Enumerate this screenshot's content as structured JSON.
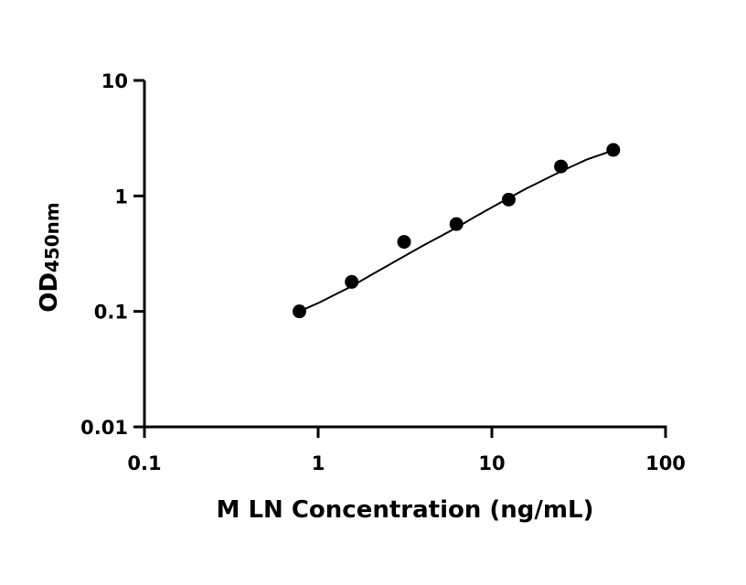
{
  "chart_data": {
    "type": "scatter",
    "xlabel": "M LN Concentration (ng/mL)",
    "ylabel": {
      "main": "OD",
      "sub": "450nm"
    },
    "x_scale": "log",
    "y_scale": "log",
    "xlim": [
      0.1,
      100
    ],
    "ylim": [
      0.01,
      10
    ],
    "x_ticks": [
      0.1,
      1,
      10,
      100
    ],
    "x_tick_labels": [
      "0.1",
      "1",
      "10",
      "100"
    ],
    "y_ticks": [
      0.01,
      0.1,
      1,
      10
    ],
    "y_tick_labels": [
      "0.01",
      "0.1",
      "1",
      "10"
    ],
    "grid": false,
    "series": [
      {
        "points": [
          {
            "x": 0.78,
            "y": 0.1
          },
          {
            "x": 1.56,
            "y": 0.18
          },
          {
            "x": 3.125,
            "y": 0.4
          },
          {
            "x": 6.25,
            "y": 0.57
          },
          {
            "x": 12.5,
            "y": 0.93
          },
          {
            "x": 25,
            "y": 1.8
          },
          {
            "x": 50,
            "y": 2.5
          }
        ],
        "fit_curve": {
          "x": [
            0.78,
            1.0,
            1.56,
            2.0,
            3.125,
            4.0,
            6.25,
            8.0,
            12.5,
            16.0,
            25,
            35,
            50
          ],
          "y": [
            0.1,
            0.118,
            0.165,
            0.205,
            0.3,
            0.37,
            0.53,
            0.66,
            0.96,
            1.17,
            1.63,
            2.06,
            2.48
          ]
        },
        "color": "#000000"
      }
    ]
  }
}
